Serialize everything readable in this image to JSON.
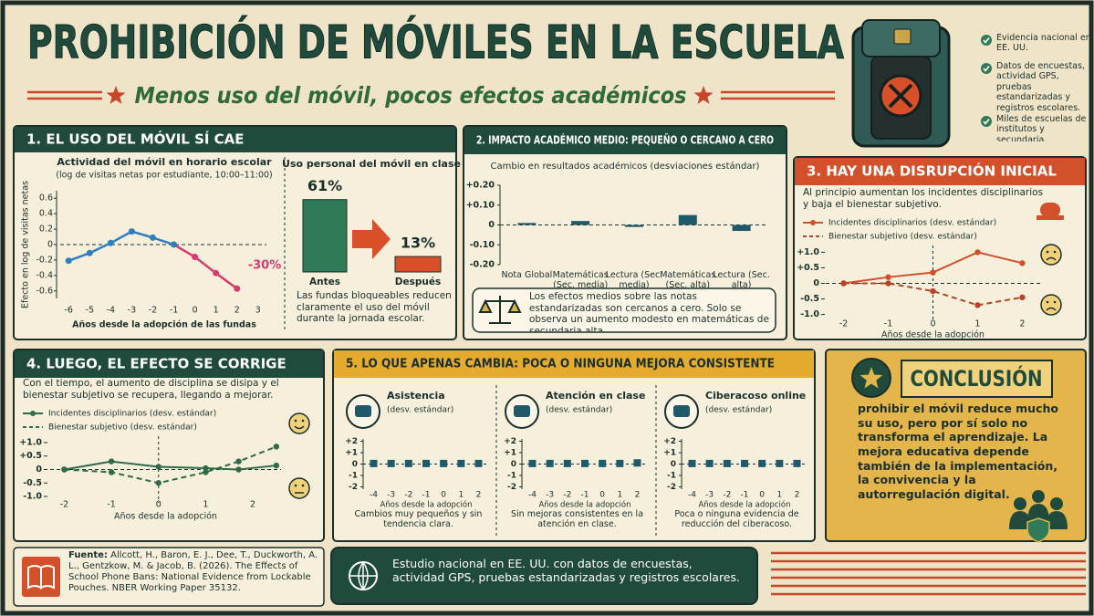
{
  "header": {
    "title": "PROHIBICIÓN DE MÓVILES EN LA ESCUELA",
    "subtitle": "Menos uso del móvil, pocos efectos académicos"
  },
  "highlights": [
    "Evidencia nacional en EE. UU.",
    "Datos de encuestas, actividad GPS, pruebas estandarizadas y registros escolares.",
    "Miles de escuelas de institutos y secundaria."
  ],
  "panel1": {
    "title": "1. EL USO DEL MÓVIL SÍ CAE",
    "chart": {
      "type": "line",
      "title": "Actividad del móvil en horario escolar",
      "subtitle": "(log de visitas netas por estudiante, 10:00–11:00)",
      "y_label": "Efecto en log de visitas netas",
      "x_label": "Años desde la adopción de las fundas",
      "x": [
        -6,
        -5,
        -4,
        -3,
        -2,
        -1,
        0,
        1,
        2
      ],
      "values": [
        -0.21,
        -0.11,
        0.02,
        0.17,
        0.09,
        0,
        -0.16,
        -0.37,
        -0.57
      ],
      "color_before": "#2f7fc0",
      "color_after": "#d63a6e",
      "annotation": "-30%",
      "xlim": [
        -6.4,
        3.4
      ],
      "xticks": [
        -6,
        -5,
        -4,
        -3,
        -2,
        -1,
        0,
        1,
        2,
        3
      ],
      "ylim": [
        -0.65,
        0.65
      ],
      "yticks": [
        0.6,
        0.4,
        0.2,
        0,
        -0.2,
        -0.4,
        -0.6
      ]
    },
    "bars": {
      "type": "bar",
      "title": "Uso personal del móvil en clase",
      "categories": [
        "Antes",
        "Después"
      ],
      "values": [
        61,
        13
      ],
      "value_labels": [
        "61%",
        "13%"
      ],
      "colors": [
        "#2f7a57",
        "#d8502a"
      ]
    },
    "note": "Las fundas bloqueables reducen claramente el uso del móvil durante la jornada escolar."
  },
  "panel2": {
    "title": "2. IMPACTO ACADÉMICO MEDIO: PEQUEÑO O CERCANO A CERO",
    "chart": {
      "type": "bar",
      "title": "Cambio en resultados académicos (desviaciones estándar)",
      "categories": [
        "Nota Global",
        "Matemáticas (Sec. media)",
        "Lectura (Sec. media)",
        "Matemáticas (Sec. alta)",
        "Lectura (Sec. alta)"
      ],
      "values": [
        0.01,
        0.02,
        -0.01,
        0.05,
        -0.03
      ],
      "color": "#1f5a6a",
      "ylim": [
        -0.2,
        0.2
      ],
      "yticks": [
        {
          "value": 0.2,
          "label": "+0.20"
        },
        {
          "value": 0.1,
          "label": "+0.10"
        },
        0,
        {
          "value": -0.1,
          "label": "-0.10"
        },
        {
          "value": -0.2,
          "label": "-0.20"
        }
      ]
    },
    "note": "Los efectos medios sobre las notas estandarizadas son cercanos a cero. Solo se observa un aumento modesto en matemáticas de secundaria alta."
  },
  "panel3": {
    "title": "3. HAY UNA DISRUPCIÓN INICIAL",
    "text": "Al principio aumentan los incidentes disciplinarios y baja el bienestar subjetivo.",
    "chart": {
      "type": "line",
      "x_label": "Años desde la adopción",
      "x": [
        -2,
        -1,
        0,
        1,
        2
      ],
      "series": [
        {
          "name": "Incidentes disciplinarios (desv. estándar)",
          "color": "#d2502a",
          "values": [
            0,
            0.2,
            0.35,
            1.0,
            0.65
          ]
        },
        {
          "name": "Bienestar subjetivo (desv. estándar)",
          "color": "#b5452a",
          "dashed": true,
          "values": [
            0,
            0,
            -0.25,
            -0.7,
            -0.45
          ]
        }
      ],
      "xlim": [
        -2.4,
        2.4
      ],
      "xticks": [
        -2,
        -1,
        0,
        1,
        2
      ],
      "ylim": [
        -1.1,
        1.1
      ],
      "yticks": [
        {
          "value": 1,
          "label": "+1.0"
        },
        {
          "value": 0.5,
          "label": "+0.5"
        },
        0,
        -0.5,
        {
          "value": -1,
          "label": "-1.0"
        }
      ]
    }
  },
  "panel4": {
    "title": "4. LUEGO, EL EFECTO SE CORRIGE",
    "text": "Con el tiempo, el aumento de disciplina se disipa y el bienestar subjetivo se recupera, llegando a mejorar.",
    "chart": {
      "type": "line",
      "x_label": "Años desde la adopción",
      "x": [
        -2,
        -1,
        0,
        1,
        1.7,
        2.5
      ],
      "series": [
        {
          "name": "Incidentes disciplinarios (desv. estándar)",
          "color": "#2f6a4a",
          "values": [
            0,
            0.3,
            0.1,
            0.05,
            0,
            0.15
          ]
        },
        {
          "name": "Bienestar subjetivo (desv. estándar)",
          "color": "#2f6a4a",
          "dashed": true,
          "values": [
            0,
            -0.1,
            -0.5,
            -0.1,
            0.3,
            0.85
          ]
        }
      ],
      "xlim": [
        -2.3,
        2.6
      ],
      "xticks": [
        -2,
        -1,
        0,
        1,
        2
      ],
      "ylim": [
        -1.1,
        1.1
      ],
      "yticks": [
        {
          "value": 1,
          "label": "+1.0"
        },
        {
          "value": 0.5,
          "label": "+0.5"
        },
        0,
        -0.5,
        {
          "value": -1,
          "label": "-1.0"
        }
      ]
    }
  },
  "panel5": {
    "title": "5. LO QUE APENAS CAMBIA: POCA O NINGUNA MEJORA CONSISTENTE",
    "charts": [
      {
        "type": "scatter",
        "title": "Asistencia",
        "subtitle": "(desv. estándar)",
        "x": [
          -4,
          -3,
          -2,
          -1,
          0,
          1,
          2
        ],
        "values": [
          0.05,
          0.05,
          0.05,
          0.05,
          0.05,
          0.05,
          0.05
        ],
        "color": "#1f5a6a",
        "xlim": [
          -4.6,
          2.6
        ],
        "xticks": [
          -4,
          -3,
          -2,
          -1,
          0,
          1,
          2
        ],
        "ylim": [
          -2.2,
          2.2
        ],
        "yticks": [
          {
            "value": 2,
            "label": "+2"
          },
          {
            "value": 1,
            "label": "+1"
          },
          0,
          -1,
          -2
        ],
        "x_label": "Años desde la adopción",
        "caption": "Cambios muy pequeños y sin tendencia clara."
      },
      {
        "type": "scatter",
        "title": "Atención en clase",
        "subtitle": "(desv. estándar)",
        "x": [
          -4,
          -3,
          -2,
          -1,
          0,
          1,
          2
        ],
        "values": [
          0.05,
          0.05,
          0.05,
          0.05,
          0.05,
          0.05,
          0.1
        ],
        "color": "#1f5a6a",
        "xlim": [
          -4.6,
          2.6
        ],
        "xticks": [
          -4,
          -3,
          -2,
          -1,
          0,
          1,
          2
        ],
        "ylim": [
          -2.2,
          2.2
        ],
        "yticks": [
          {
            "value": 2,
            "label": "+2"
          },
          {
            "value": 1,
            "label": "+1"
          },
          0,
          -1,
          -2
        ],
        "x_label": "Años desde la adopción",
        "caption": "Sin mejoras consistentes en la atención en clase."
      },
      {
        "type": "scatter",
        "title": "Ciberacoso online",
        "subtitle": "(desv. estándar)",
        "x": [
          -4,
          -3,
          -2,
          -1,
          0,
          1,
          2
        ],
        "values": [
          0.05,
          0.05,
          0.05,
          0.05,
          0.05,
          0.05,
          0.05
        ],
        "color": "#1f5a6a",
        "xlim": [
          -4.6,
          2.6
        ],
        "xticks": [
          -4,
          -3,
          -2,
          -1,
          0,
          1,
          2
        ],
        "ylim": [
          -2.2,
          2.2
        ],
        "yticks": [
          {
            "value": 2,
            "label": "+2"
          },
          {
            "value": 1,
            "label": "+1"
          },
          0,
          -1,
          -2
        ],
        "x_label": "Años desde la adopción",
        "caption": "Poca o ninguna evidencia de reducción del ciberacoso."
      }
    ]
  },
  "conclusion": {
    "title": "CONCLUSIÓN",
    "text": "prohibir el móvil reduce mucho su uso, pero por sí solo no transforma el aprendizaje. La mejora educativa depende también de la implementación, la convivencia y la autorregulación digital."
  },
  "footer": {
    "source_label": "Fuente:",
    "source": "Allcott, H., Baron, E. J., Dee, T., Duckworth, A. L., Gentzkow, M. & Jacob, B. (2026). The Effects of School Phone Bans: National Evidence from Lockable Pouches. NBER Working Paper 35132.",
    "study": "Estudio nacional en EE. UU. con datos de encuestas, actividad GPS, pruebas estandarizadas y registros escolares."
  }
}
